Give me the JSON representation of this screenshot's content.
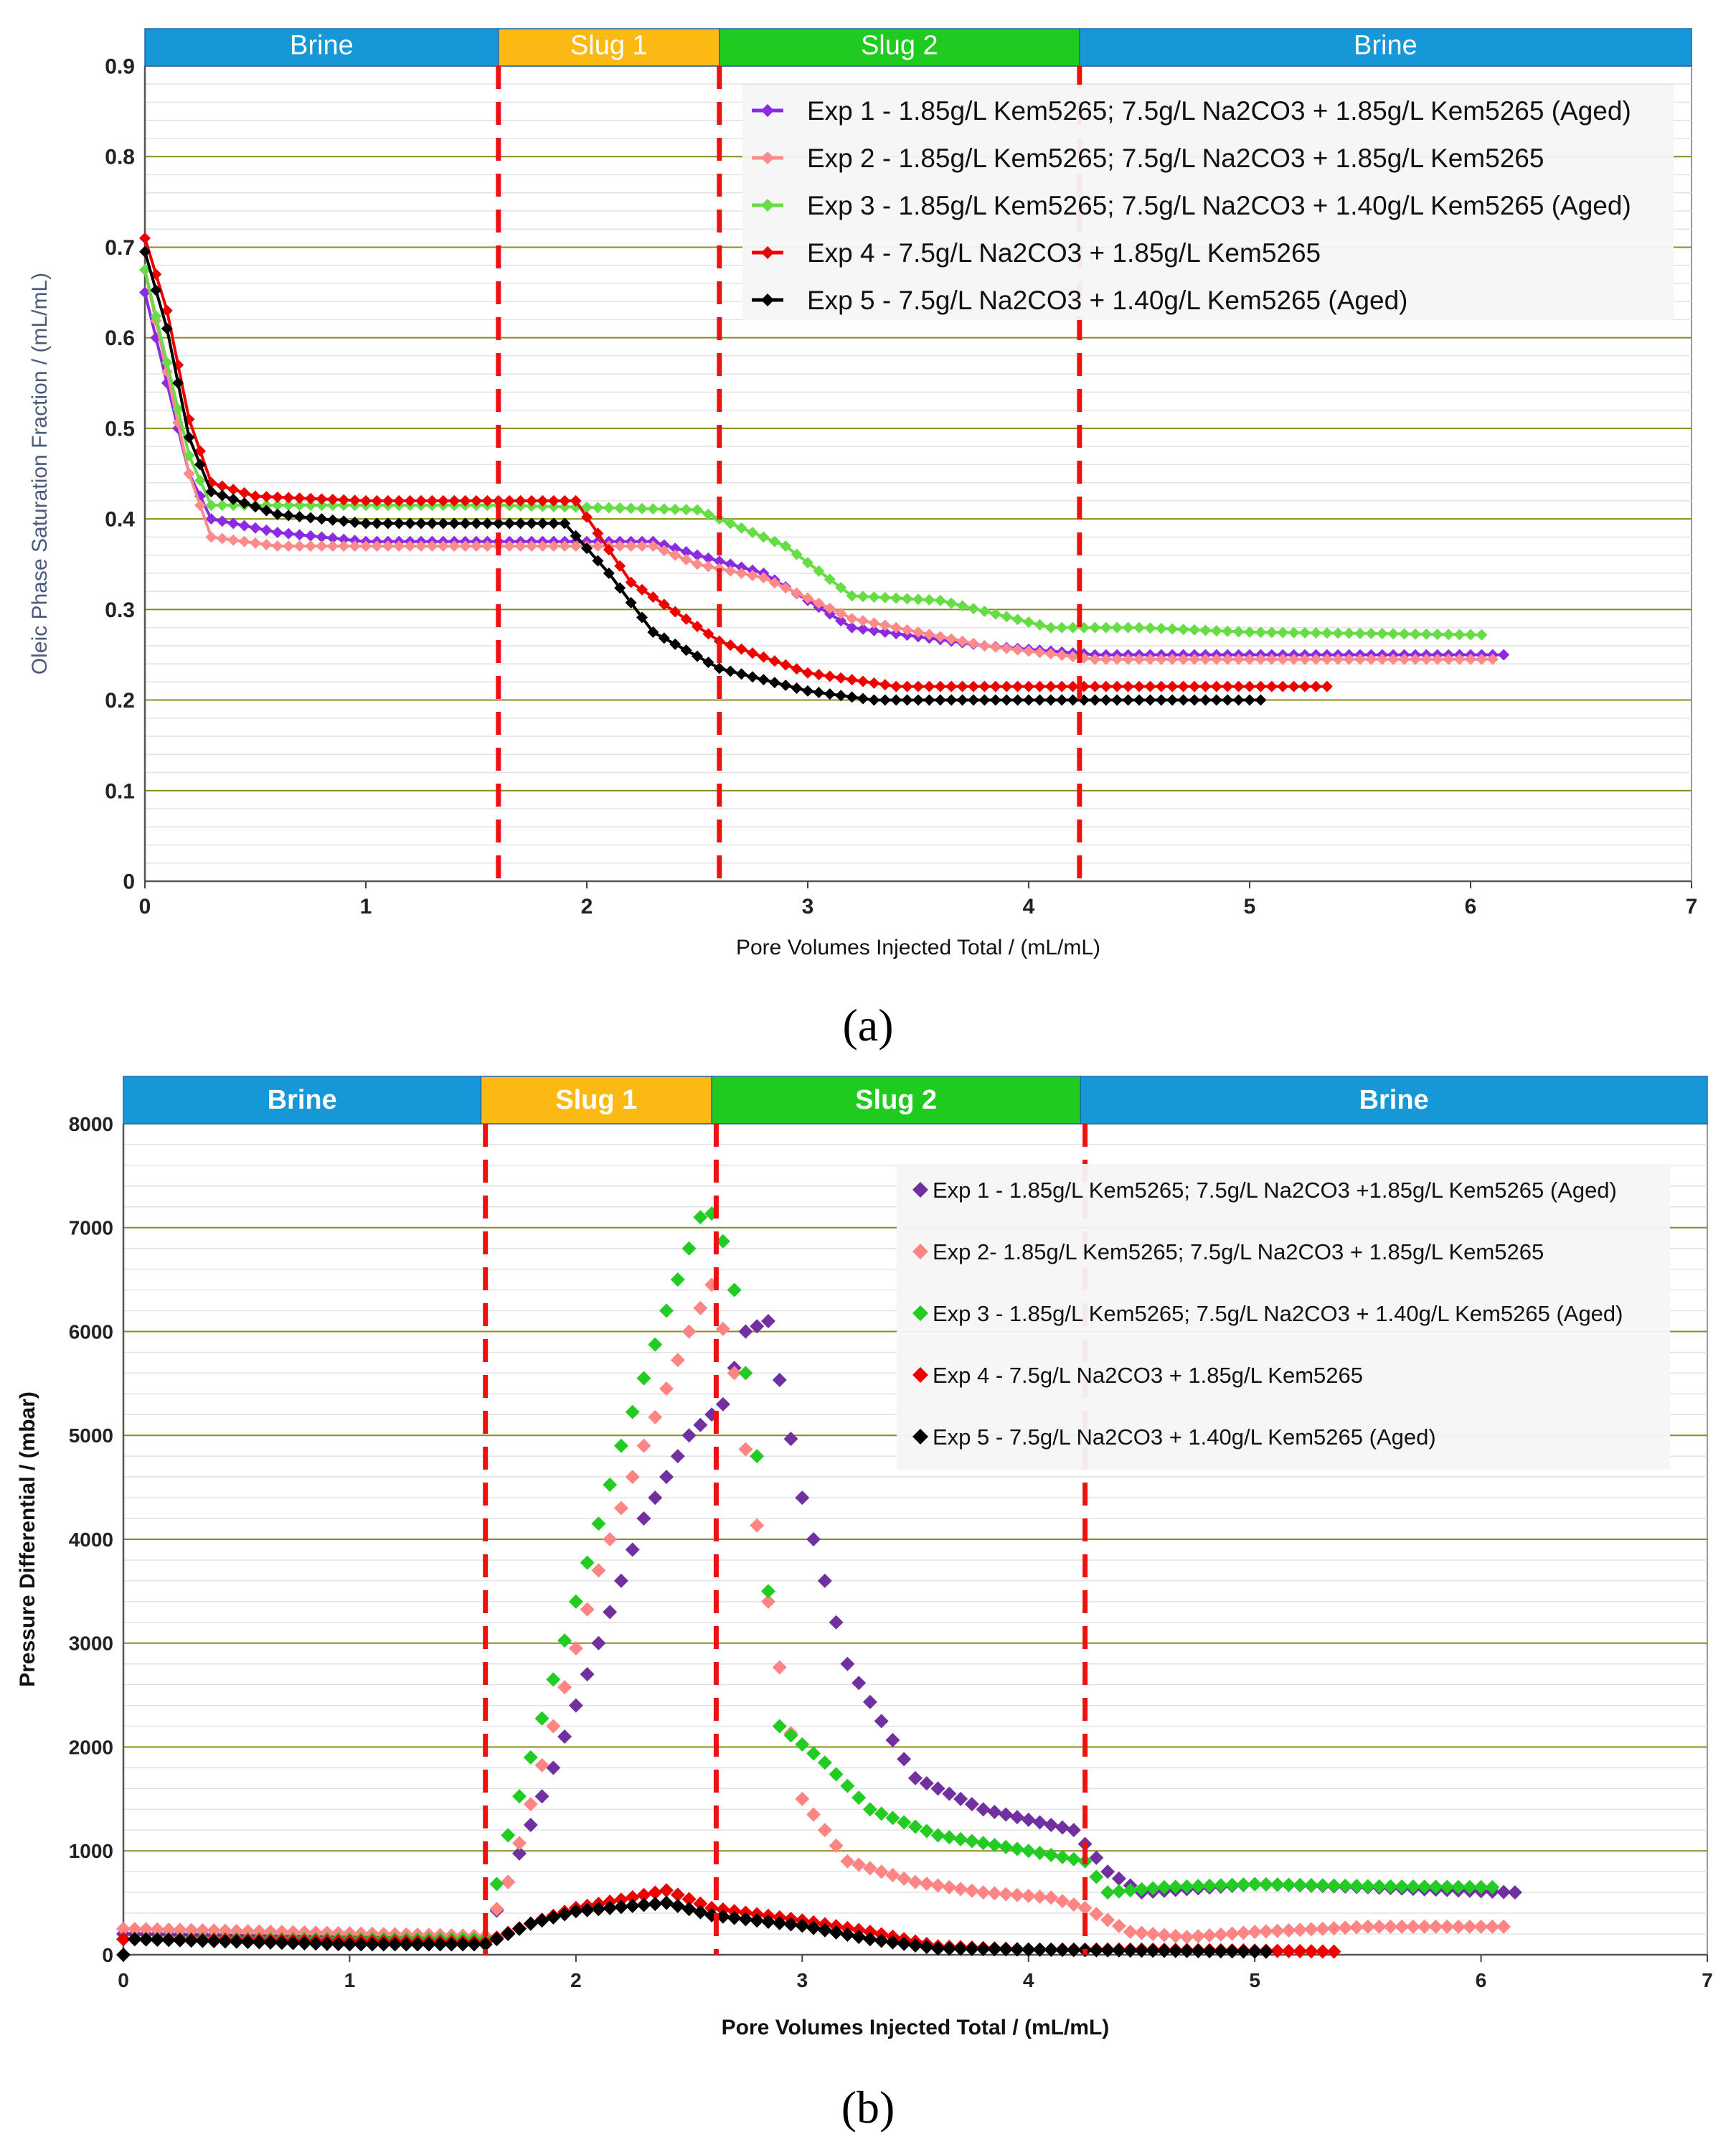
{
  "figure": {
    "panels": [
      "a",
      "b"
    ]
  },
  "chart_data": [
    {
      "id": "a",
      "panel_label": "(a)",
      "type": "line",
      "xlabel": "Pore Volumes Injected Total / (mL/mL)",
      "ylabel": "Oleic Phase Saturation Fraction / (mL/mL)",
      "xlim": [
        0,
        7
      ],
      "ylim": [
        0,
        0.9
      ],
      "xticks": [
        "0",
        "1",
        "2",
        "3",
        "4",
        "5",
        "6",
        "7"
      ],
      "yticks": [
        "0",
        "0.1",
        "0.2",
        "0.3",
        "0.4",
        "0.5",
        "0.6",
        "0.7",
        "0.8",
        "0.9"
      ],
      "grid": "horizontal",
      "legend_position": "top-right",
      "phases": [
        {
          "label": "Brine",
          "start": 0,
          "end": 1.6,
          "color": "#1597d8"
        },
        {
          "label": "Slug 1",
          "start": 1.6,
          "end": 2.6,
          "color": "#fcb913"
        },
        {
          "label": "Slug 2",
          "start": 2.6,
          "end": 4.23,
          "color": "#1ecb1e"
        },
        {
          "label": "Brine",
          "start": 4.23,
          "end": 7,
          "color": "#1597d8"
        }
      ],
      "boundaries": [
        1.6,
        2.6,
        4.23
      ],
      "series": [
        {
          "name": "Exp 1 - 1.85g/L Kem5265; 7.5g/L Na2CO3 + 1.85g/L Kem5265 (Aged)",
          "color": "#8a2be2",
          "x": [
            0,
            0.2,
            0.3,
            0.6,
            1.0,
            1.6,
            2.3,
            2.5,
            2.8,
            3.2,
            3.8,
            4.3,
            5.0,
            6.15
          ],
          "y": [
            0.65,
            0.45,
            0.4,
            0.385,
            0.375,
            0.375,
            0.375,
            0.36,
            0.34,
            0.28,
            0.26,
            0.25,
            0.25,
            0.25
          ]
        },
        {
          "name": "Exp 2 - 1.85g/L Kem5265; 7.5g/L Na2CO3 + 1.85g/L Kem5265",
          "color": "#ff8a8a",
          "x": [
            0,
            0.2,
            0.3,
            0.6,
            1.6,
            2.3,
            2.5,
            2.8,
            3.2,
            3.8,
            4.3,
            5.0,
            6.1
          ],
          "y": [
            0.675,
            0.45,
            0.38,
            0.37,
            0.37,
            0.37,
            0.35,
            0.335,
            0.29,
            0.26,
            0.245,
            0.245,
            0.245
          ]
        },
        {
          "name": "Exp 3 - 1.85g/L Kem5265; 7.5g/L Na2CO3 + 1.40g/L Kem5265 (Aged)",
          "color": "#66dd44",
          "x": [
            0,
            0.2,
            0.3,
            1.0,
            1.6,
            2.5,
            2.6,
            2.9,
            3.2,
            3.6,
            4.1,
            4.5,
            5.0,
            6.05
          ],
          "y": [
            0.675,
            0.47,
            0.415,
            0.415,
            0.415,
            0.41,
            0.4,
            0.37,
            0.315,
            0.31,
            0.28,
            0.28,
            0.275,
            0.272
          ]
        },
        {
          "name": "Exp 4 - 7.5g/L Na2CO3 + 1.85g/L Kem5265",
          "color": "#ee0000",
          "x": [
            0,
            0.1,
            0.2,
            0.3,
            0.5,
            1.0,
            1.6,
            1.95,
            2.2,
            2.6,
            3.0,
            3.4,
            4.0,
            5.35
          ],
          "y": [
            0.71,
            0.63,
            0.51,
            0.44,
            0.425,
            0.42,
            0.42,
            0.42,
            0.33,
            0.265,
            0.23,
            0.215,
            0.215,
            0.215
          ]
        },
        {
          "name": "Exp 5 - 7.5g/L Na2CO3 + 1.40g/L Kem5265 (Aged)",
          "color": "#000000",
          "x": [
            0,
            0.1,
            0.2,
            0.3,
            0.6,
            1.0,
            1.6,
            1.9,
            2.1,
            2.3,
            2.6,
            3.0,
            3.3,
            4.0,
            5.05
          ],
          "y": [
            0.695,
            0.61,
            0.49,
            0.43,
            0.405,
            0.395,
            0.395,
            0.395,
            0.34,
            0.275,
            0.235,
            0.21,
            0.2,
            0.2,
            0.2
          ]
        }
      ]
    },
    {
      "id": "b",
      "panel_label": "(b)",
      "type": "scatter",
      "xlabel": "Pore Volumes Injected Total / (mL/mL)",
      "ylabel": "Pressure Differential / (mbar)",
      "xlim": [
        0,
        7
      ],
      "ylim": [
        0,
        8000
      ],
      "xticks": [
        "0",
        "1",
        "2",
        "3",
        "4",
        "5",
        "6",
        "7"
      ],
      "yticks": [
        "0",
        "1000",
        "2000",
        "3000",
        "4000",
        "5000",
        "6000",
        "7000",
        "8000"
      ],
      "grid": "horizontal",
      "legend_position": "top-right",
      "phases": [
        {
          "label": "Brine",
          "start": 0,
          "end": 1.58,
          "color": "#1597d8"
        },
        {
          "label": "Slug 1",
          "start": 1.58,
          "end": 2.6,
          "color": "#fcb913"
        },
        {
          "label": "Slug 2",
          "start": 2.6,
          "end": 4.23,
          "color": "#1ecb1e"
        },
        {
          "label": "Brine",
          "start": 4.23,
          "end": 7,
          "color": "#1597d8"
        }
      ],
      "boundaries": [
        1.6,
        2.62,
        4.25
      ],
      "series": [
        {
          "name": "Exp 1 - 1.85g/L Kem5265; 7.5g/L Na2CO3 +1.85g/L Kem5265 (Aged)",
          "color": "#7030a0",
          "x": [
            0,
            1.6,
            1.7,
            1.9,
            2.1,
            2.3,
            2.5,
            2.65,
            2.75,
            2.85,
            3.0,
            3.2,
            3.5,
            3.8,
            4.0,
            4.2,
            4.35,
            4.5,
            5.0,
            5.5,
            6.15
          ],
          "y": [
            200,
            150,
            700,
            1800,
            3000,
            4200,
            5000,
            5300,
            6000,
            6100,
            4400,
            2800,
            1700,
            1400,
            1300,
            1200,
            800,
            600,
            680,
            650,
            600
          ]
        },
        {
          "name": "Exp 2- 1.85g/L Kem5265; 7.5g/L Na2CO3 + 1.85g/L Kem5265",
          "color": "#ff8585",
          "x": [
            0,
            1.6,
            1.7,
            1.9,
            2.1,
            2.3,
            2.5,
            2.6,
            2.7,
            2.85,
            3.0,
            3.2,
            3.5,
            3.8,
            4.1,
            4.25,
            4.45,
            4.7,
            5.0,
            5.5,
            6.1
          ],
          "y": [
            250,
            180,
            700,
            2200,
            3700,
            4900,
            6000,
            6450,
            5600,
            3400,
            1500,
            900,
            700,
            600,
            550,
            450,
            220,
            170,
            220,
            270,
            270
          ]
        },
        {
          "name": "Exp 3 - 1.85g/L Kem5265; 7.5g/L Na2CO3 + 1.40g/L Kem5265 (Aged)",
          "color": "#22cc22",
          "x": [
            0,
            1.6,
            1.68,
            1.8,
            2.0,
            2.2,
            2.4,
            2.55,
            2.62,
            2.7,
            2.8,
            2.9,
            3.1,
            3.3,
            3.6,
            4.0,
            4.25,
            4.35,
            4.6,
            5.0,
            5.5,
            6.05
          ],
          "y": [
            150,
            150,
            1000,
            1900,
            3400,
            4900,
            6200,
            7100,
            7150,
            6400,
            4800,
            2200,
            1850,
            1400,
            1150,
            1000,
            900,
            600,
            650,
            680,
            660,
            650
          ]
        },
        {
          "name": "Exp 4 - 7.5g/L Na2CO3 + 1.85g/L Kem5265",
          "color": "#ee0000",
          "x": [
            0,
            1.6,
            1.8,
            2.0,
            2.2,
            2.4,
            2.6,
            3.0,
            3.3,
            3.6,
            4.0,
            4.5,
            5.0,
            5.35
          ],
          "y": [
            150,
            120,
            300,
            450,
            530,
            620,
            450,
            330,
            220,
            80,
            50,
            50,
            40,
            30
          ]
        },
        {
          "name": "Exp 5 - 7.5g/L Na2CO3 + 1.40g/L Kem5265 (Aged)",
          "color": "#000000",
          "x": [
            0,
            0.05,
            1.0,
            1.6,
            1.8,
            2.0,
            2.2,
            2.4,
            2.6,
            3.0,
            3.3,
            3.6,
            4.0,
            4.5,
            5.05
          ],
          "y": [
            0,
            150,
            100,
            100,
            300,
            420,
            460,
            500,
            380,
            280,
            150,
            60,
            50,
            40,
            30
          ]
        }
      ]
    }
  ]
}
